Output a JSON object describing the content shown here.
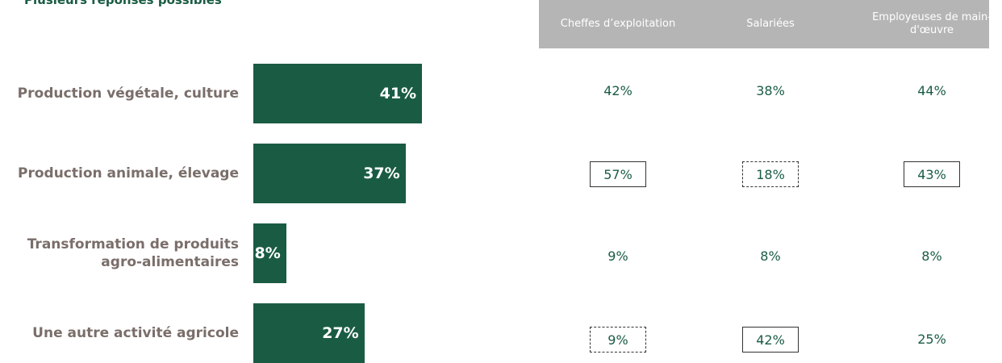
{
  "chart_data": {
    "type": "bar",
    "note": "Plusieurs réponses possibles",
    "categories": [
      "Production végétale, culture",
      "Production animale, élevage",
      "Transformation de produits agro-alimentaires",
      "Une autre activité agricole"
    ],
    "values": [
      41,
      37,
      8,
      27
    ],
    "value_labels": [
      "41%",
      "37%",
      "8%",
      "27%"
    ],
    "color": "#1a5c43",
    "table": {
      "columns": [
        "Cheffes d’exploitation",
        "Salariées",
        "Employeuses de main-d'œuvre"
      ],
      "rows": [
        [
          {
            "text": "42%"
          },
          {
            "text": "38%"
          },
          {
            "text": "44%"
          }
        ],
        [
          {
            "text": "57%",
            "box": "solid"
          },
          {
            "text": "18%",
            "box": "dashed"
          },
          {
            "text": "43%",
            "box": "solid"
          }
        ],
        [
          {
            "text": "9%"
          },
          {
            "text": "8%"
          },
          {
            "text": "8%"
          }
        ],
        [
          {
            "text": "9%",
            "box": "dashed"
          },
          {
            "text": "42%",
            "box": "solid"
          },
          {
            "text": "25%"
          }
        ]
      ]
    }
  }
}
